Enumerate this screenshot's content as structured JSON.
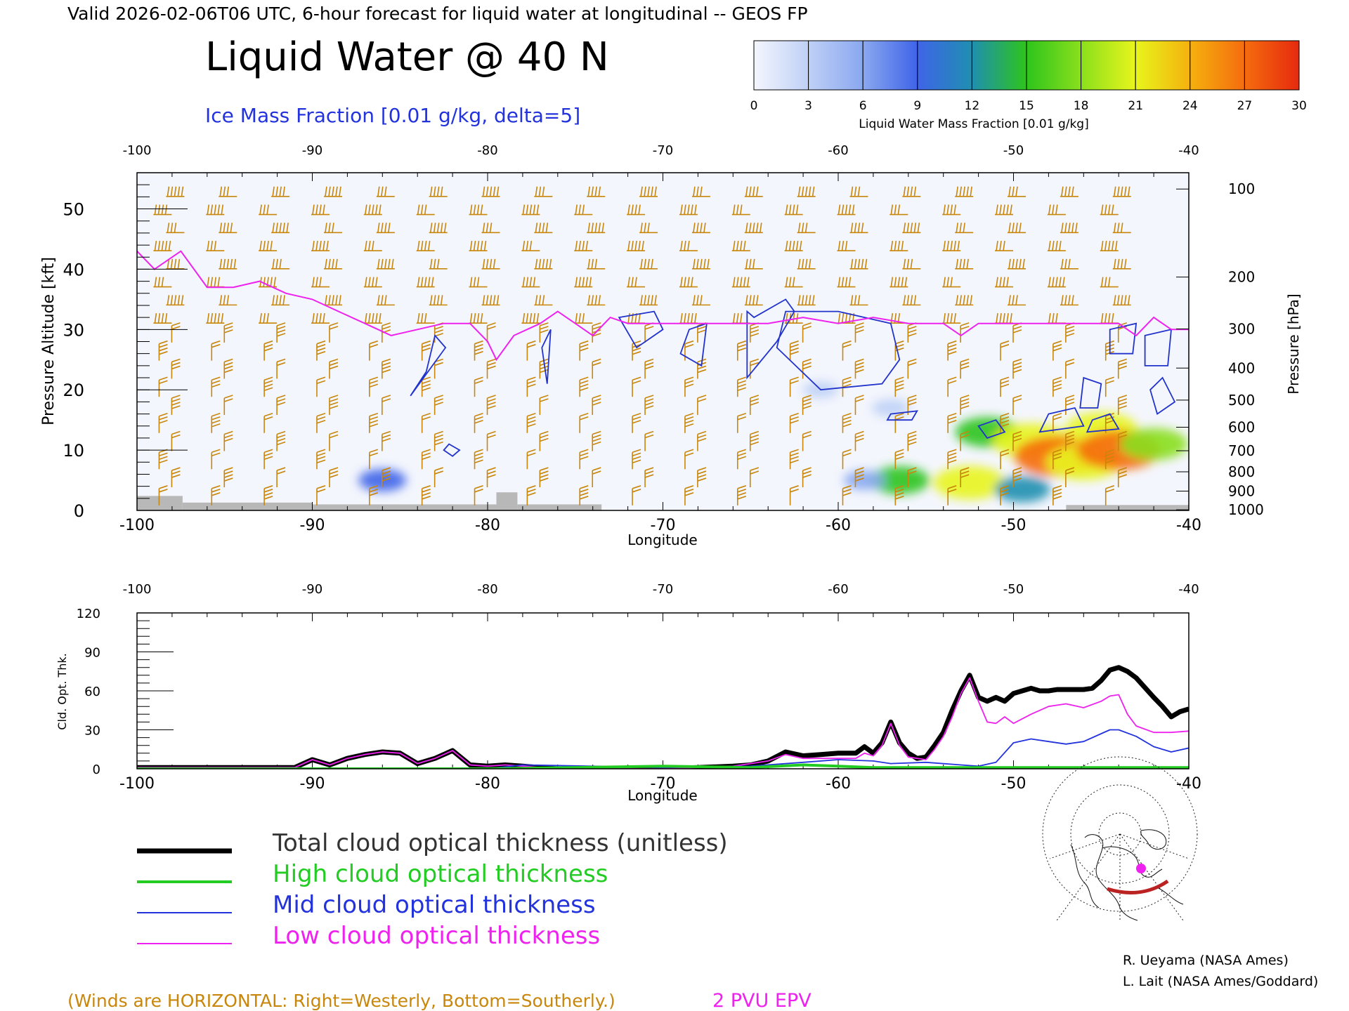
{
  "header": {
    "valid_line": "Valid 2026-02-06T06 UTC, 6-hour forecast for liquid water at longitudinal -- GEOS FP",
    "title": "Liquid Water @ 40 N",
    "subtitle": "Ice Mass Fraction [0.01 g/kg, delta=5]"
  },
  "colorbar": {
    "ticks": [
      "0",
      "3",
      "6",
      "9",
      "12",
      "15",
      "18",
      "21",
      "24",
      "27",
      "30"
    ],
    "colors": [
      "#f4f6fd",
      "#bfd0f6",
      "#8aa8f0",
      "#3f64e8",
      "#1f8fb0",
      "#2ec41c",
      "#8adf1c",
      "#e8f51c",
      "#f5b10e",
      "#f56c0e",
      "#e62a0e"
    ],
    "label": "Liquid Water Mass Fraction [0.01 g/kg]"
  },
  "colors": {
    "wind_barb": "#c8860a",
    "ice_contour": "#2233cc",
    "epv": "#ee22ee",
    "total": "#000000",
    "high": "#22cc22",
    "mid": "#2233dd",
    "low": "#ee22ee",
    "terrain": "#b8b8b8",
    "frame": "#000000"
  },
  "chart_data": [
    {
      "type": "heatmap",
      "name_shown": "Liquid Water @ 40 N",
      "xlabel": "Longitude",
      "ylabel_left": "Pressure Altitude [kft]",
      "ylabel_right": "Pressure [hPa]",
      "xlim": [
        -100,
        -40
      ],
      "ylim": [
        0,
        56
      ],
      "x_ticks": [
        "-100",
        "-90",
        "-80",
        "-70",
        "-60",
        "-50",
        "-40"
      ],
      "top_ticks": [
        "-100",
        "-90",
        "-80",
        "-70",
        "-60",
        "-50",
        "-40"
      ],
      "y_ticks": [
        "0",
        "10",
        "20",
        "30",
        "40",
        "50"
      ],
      "pressure_ticks": [
        {
          "label": "100",
          "kft": 53.3
        },
        {
          "label": "200",
          "kft": 38.7
        },
        {
          "label": "300",
          "kft": 30.1
        },
        {
          "label": "400",
          "kft": 23.6
        },
        {
          "label": "500",
          "kft": 18.3
        },
        {
          "label": "600",
          "kft": 13.8
        },
        {
          "label": "700",
          "kft": 9.9
        },
        {
          "label": "800",
          "kft": 6.4
        },
        {
          "label": "900",
          "kft": 3.2
        },
        {
          "label": "1000",
          "kft": 0.1
        }
      ],
      "liquid_water_blobs": [
        {
          "lon": -52.5,
          "kft": 4.6,
          "value": 20
        },
        {
          "lon": -56.5,
          "kft": 5.0,
          "value": 14
        },
        {
          "lon": -49.5,
          "kft": 3.5,
          "value": 12
        },
        {
          "lon": -51.5,
          "kft": 13.0,
          "value": 16
        },
        {
          "lon": -49.0,
          "kft": 11.5,
          "value": 22
        },
        {
          "lon": -47.5,
          "kft": 9.0,
          "value": 27
        },
        {
          "lon": -46.0,
          "kft": 8.0,
          "value": 22
        },
        {
          "lon": -45.0,
          "kft": 13.5,
          "value": 20
        },
        {
          "lon": -44.0,
          "kft": 10.0,
          "value": 26
        },
        {
          "lon": -42.0,
          "kft": 11.0,
          "value": 18
        },
        {
          "lon": -58.5,
          "kft": 5.0,
          "value": 5
        },
        {
          "lon": -86.0,
          "kft": 5.0,
          "value": 8
        },
        {
          "lon": -57.0,
          "kft": 17.0,
          "value": 3
        },
        {
          "lon": -61.0,
          "kft": 20.0,
          "value": 2
        }
      ],
      "ice_contours": [
        [
          [
            -83.5,
            23
          ],
          [
            -83.0,
            29
          ],
          [
            -82.4,
            27
          ],
          [
            -84.4,
            19
          ],
          [
            -83.5,
            23
          ]
        ],
        [
          [
            -82.5,
            10
          ],
          [
            -82.0,
            9
          ],
          [
            -81.6,
            10
          ],
          [
            -82.2,
            11
          ],
          [
            -82.5,
            10
          ]
        ],
        [
          [
            -76.6,
            21
          ],
          [
            -76.4,
            30
          ],
          [
            -76.9,
            27
          ],
          [
            -76.6,
            21
          ]
        ],
        [
          [
            -72.5,
            32
          ],
          [
            -70.5,
            33
          ],
          [
            -70.0,
            30
          ],
          [
            -71.5,
            27
          ],
          [
            -72.5,
            32
          ]
        ],
        [
          [
            -68.5,
            30
          ],
          [
            -67.5,
            31
          ],
          [
            -67.8,
            24
          ],
          [
            -69.0,
            26
          ],
          [
            -68.5,
            30
          ]
        ],
        [
          [
            -64.8,
            32
          ],
          [
            -63.0,
            35
          ],
          [
            -62.5,
            33
          ],
          [
            -63.5,
            28
          ],
          [
            -65.2,
            22
          ],
          [
            -65.2,
            33
          ],
          [
            -64.8,
            32
          ]
        ],
        [
          [
            -63.0,
            33
          ],
          [
            -60.0,
            33
          ],
          [
            -57.0,
            31
          ],
          [
            -56.5,
            25
          ],
          [
            -57.5,
            21
          ],
          [
            -61.0,
            20
          ],
          [
            -63.5,
            27
          ],
          [
            -63.0,
            33
          ]
        ],
        [
          [
            -57.0,
            16
          ],
          [
            -55.5,
            16.5
          ],
          [
            -55.8,
            15
          ],
          [
            -57.2,
            15
          ],
          [
            -57.0,
            16
          ]
        ],
        [
          [
            -52.0,
            14
          ],
          [
            -51.0,
            15
          ],
          [
            -50.5,
            13
          ],
          [
            -51.5,
            12
          ],
          [
            -52.0,
            14
          ]
        ],
        [
          [
            -48.0,
            16
          ],
          [
            -46.5,
            17
          ],
          [
            -46.0,
            14
          ],
          [
            -48.5,
            13
          ],
          [
            -48.0,
            16
          ]
        ],
        [
          [
            -46.0,
            22
          ],
          [
            -45.0,
            21
          ],
          [
            -45.2,
            17
          ],
          [
            -46.2,
            17
          ],
          [
            -46.0,
            22
          ]
        ],
        [
          [
            -44.5,
            30
          ],
          [
            -43.0,
            31
          ],
          [
            -43.2,
            26
          ],
          [
            -44.5,
            26
          ],
          [
            -44.5,
            30
          ]
        ],
        [
          [
            -42.5,
            29
          ],
          [
            -41.0,
            30
          ],
          [
            -41.2,
            24
          ],
          [
            -42.5,
            24
          ],
          [
            -42.5,
            29
          ]
        ],
        [
          [
            -42.2,
            20
          ],
          [
            -41.5,
            22
          ],
          [
            -40.8,
            18
          ],
          [
            -41.8,
            16
          ],
          [
            -42.2,
            20
          ]
        ],
        [
          [
            -45.5,
            15
          ],
          [
            -44.5,
            16
          ],
          [
            -44.0,
            13.5
          ],
          [
            -45.8,
            13
          ],
          [
            -45.5,
            15
          ]
        ]
      ],
      "tropopause_2pvu": {
        "lon": [
          -100,
          -99,
          -97.5,
          -96,
          -94.5,
          -93,
          -91.5,
          -90,
          -88.5,
          -87,
          -85.5,
          -84,
          -82.5,
          -81,
          -80,
          -79.5,
          -78.5,
          -77,
          -76,
          -75,
          -74,
          -73,
          -72,
          -70,
          -68,
          -66,
          -64,
          -62,
          -60,
          -58,
          -56,
          -54,
          -53,
          -52,
          -50,
          -48,
          -46,
          -44,
          -43,
          -42,
          -41,
          -40
        ],
        "kft": [
          43,
          40,
          43,
          37,
          37,
          38,
          36,
          35,
          33,
          31,
          29,
          30,
          31,
          31,
          28,
          25,
          29,
          31,
          33,
          31,
          29,
          32,
          31,
          31,
          31,
          31,
          31,
          32,
          31,
          32,
          31,
          31,
          29,
          31,
          31,
          31,
          31,
          31,
          29,
          32,
          30,
          30
        ]
      },
      "wind_barbs": {
        "lon": [
          -98.5,
          -95.5,
          -92.5,
          -89.5,
          -86.5,
          -83.5,
          -80.5,
          -77.5,
          -74.5,
          -71.5,
          -68.5,
          -65.5,
          -62.5,
          -59.5,
          -56.5,
          -53.5,
          -50.5,
          -47.5,
          -44.5
        ],
        "kft": [
          2,
          5,
          8,
          11,
          14,
          17,
          20,
          23,
          26,
          29,
          32,
          35,
          38,
          41,
          44,
          47,
          50,
          53
        ]
      },
      "terrain": [
        {
          "lon0": -100,
          "lon1": -97.4,
          "kft": 2.4
        },
        {
          "lon0": -97.4,
          "lon1": -90,
          "kft": 1.3
        },
        {
          "lon0": -90,
          "lon1": -79.5,
          "kft": 1.0
        },
        {
          "lon0": -79.5,
          "lon1": -78.3,
          "kft": 3.0
        },
        {
          "lon0": -78.3,
          "lon1": -73.5,
          "kft": 1.0
        },
        {
          "lon0": -47,
          "lon1": -40,
          "kft": 0.9
        }
      ]
    },
    {
      "type": "line",
      "ylabel": "Cld. Opt. Thk.",
      "xlabel": "Longitude",
      "xlim": [
        -100,
        -40
      ],
      "ylim": [
        0,
        120
      ],
      "x_ticks": [
        "-100",
        "-90",
        "-80",
        "-70",
        "-60",
        "-50",
        "-40"
      ],
      "top_ticks": [
        "-100",
        "-90",
        "-80",
        "-70",
        "-60",
        "-50",
        "-40"
      ],
      "y_ticks": [
        "0",
        "30",
        "60",
        "90",
        "120"
      ],
      "series": [
        {
          "name": "Total cloud optical thickness (unitless)",
          "x": [
            -100,
            -91,
            -90,
            -89,
            -88,
            -87,
            -86,
            -85,
            -84,
            -83,
            -82,
            -81,
            -80,
            -79,
            -78,
            -77,
            -76,
            -75,
            -74,
            -72,
            -70,
            -68,
            -66,
            -65,
            -64,
            -63,
            -62,
            -61,
            -60,
            -59,
            -58.5,
            -58,
            -57.5,
            -57,
            -56.5,
            -56,
            -55.5,
            -55,
            -54.5,
            -54,
            -53.5,
            -53,
            -52.5,
            -52,
            -51.5,
            -51,
            -50.5,
            -50,
            -49.5,
            -49,
            -48.5,
            -48,
            -47.5,
            -47,
            -46,
            -45.5,
            -45,
            -44.5,
            -44,
            -43.5,
            -43,
            -42,
            -41.5,
            -41,
            -40.5,
            -40
          ],
          "y": [
            1,
            1,
            7,
            3,
            8,
            11,
            13,
            12,
            4,
            8,
            14,
            3,
            2,
            3,
            2,
            1,
            0,
            0,
            0,
            0,
            0,
            1,
            2,
            3,
            6,
            13,
            10,
            11,
            12,
            12,
            17,
            12,
            20,
            36,
            20,
            12,
            8,
            9,
            18,
            28,
            45,
            60,
            72,
            55,
            52,
            55,
            52,
            58,
            60,
            62,
            60,
            60,
            61,
            61,
            61,
            62,
            68,
            76,
            78,
            75,
            70,
            55,
            48,
            40,
            44,
            46
          ]
        },
        {
          "name": "High cloud optical thickness",
          "x": [
            -100,
            -90,
            -80,
            -70,
            -65,
            -62,
            -60,
            -58,
            -55,
            -50,
            -45,
            -40
          ],
          "y": [
            0,
            0,
            0,
            2,
            1,
            3,
            2,
            1,
            1,
            1,
            1,
            1
          ]
        },
        {
          "name": "Mid cloud optical thickness",
          "x": [
            -100,
            -80,
            -78,
            -70,
            -65,
            -62,
            -60,
            -58,
            -57,
            -55,
            -53,
            -52,
            -51,
            -50,
            -49,
            -48,
            -47,
            -46,
            -45,
            -44.5,
            -44,
            -43,
            -42,
            -41,
            -40
          ],
          "y": [
            0,
            0,
            3,
            1,
            2,
            5,
            7,
            6,
            4,
            5,
            3,
            2,
            5,
            20,
            23,
            21,
            19,
            21,
            27,
            30,
            30,
            25,
            17,
            13,
            16
          ]
        },
        {
          "name": "Low cloud optical thickness",
          "x": [
            -100,
            -91,
            -90,
            -89,
            -88,
            -87,
            -86,
            -85,
            -84,
            -83,
            -82,
            -81,
            -80,
            -79,
            -78,
            -76,
            -74,
            -72,
            -70,
            -66,
            -64,
            -63,
            -62,
            -61,
            -60,
            -59,
            -58.5,
            -58,
            -57.5,
            -57,
            -56.5,
            -56,
            -55,
            -54.5,
            -54,
            -53.5,
            -53,
            -52.5,
            -52,
            -51.5,
            -51,
            -50.5,
            -50,
            -49,
            -48,
            -47,
            -46,
            -45,
            -44.5,
            -44,
            -43.5,
            -43,
            -42,
            -41,
            -40
          ],
          "y": [
            1,
            1,
            7,
            3,
            8,
            11,
            13,
            12,
            4,
            8,
            14,
            3,
            2,
            3,
            2,
            0,
            0,
            0,
            0,
            2,
            6,
            11,
            8,
            8,
            8,
            8,
            12,
            10,
            18,
            35,
            18,
            9,
            7,
            15,
            25,
            40,
            58,
            70,
            52,
            36,
            35,
            40,
            35,
            42,
            48,
            50,
            47,
            52,
            56,
            57,
            42,
            33,
            28,
            28,
            29
          ]
        }
      ]
    }
  ],
  "legend": {
    "items": [
      {
        "label": "Total cloud optical thickness (unitless)",
        "color": "#000000",
        "width": 7
      },
      {
        "label": "High cloud optical thickness",
        "color": "#22cc22",
        "width": 4
      },
      {
        "label": "Mid cloud optical thickness",
        "color": "#2233dd",
        "width": 2
      },
      {
        "label": "Low cloud optical thickness",
        "color": "#ee22ee",
        "width": 2
      }
    ]
  },
  "footer": {
    "winds_note": "(Winds are HORIZONTAL: Right=Westerly, Bottom=Southerly.)",
    "epv_label": "2 PVU EPV",
    "credit1": "R. Ueyama (NASA Ames)",
    "credit2": "L. Lait (NASA Ames/Goddard)"
  }
}
